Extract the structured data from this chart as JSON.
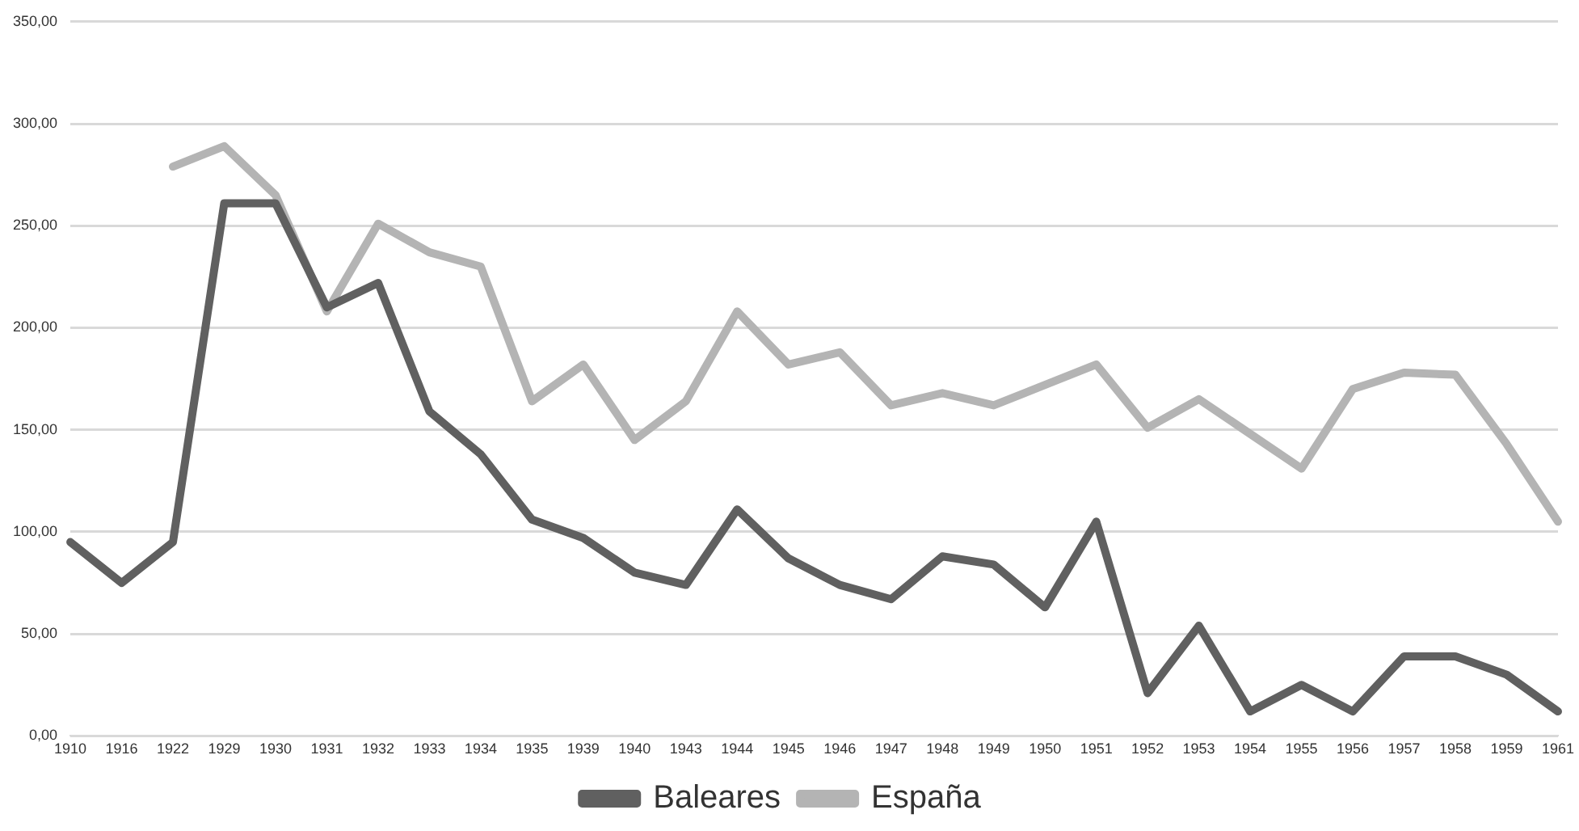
{
  "chart_data": {
    "type": "line",
    "categories": [
      "1910",
      "1916",
      "1922",
      "1929",
      "1930",
      "1931",
      "1932",
      "1933",
      "1934",
      "1935",
      "1939",
      "1940",
      "1943",
      "1944",
      "1945",
      "1946",
      "1947",
      "1948",
      "1949",
      "1950",
      "1951",
      "1952",
      "1953",
      "1954",
      "1955",
      "1956",
      "1957",
      "1958",
      "1959",
      "1961"
    ],
    "series": [
      {
        "name": "Baleares",
        "color": "#606060",
        "values": [
          95,
          75,
          95,
          261,
          261,
          210,
          222,
          159,
          138,
          106,
          97,
          80,
          74,
          111,
          87,
          74,
          67,
          88,
          84,
          63,
          105,
          21,
          54,
          12,
          25,
          12,
          39,
          39,
          30,
          12
        ]
      },
      {
        "name": "España",
        "color": "#b4b4b4",
        "values": [
          null,
          null,
          279,
          289,
          265,
          208,
          251,
          237,
          230,
          164,
          182,
          145,
          164,
          208,
          182,
          188,
          162,
          168,
          162,
          172,
          182,
          151,
          165,
          148,
          131,
          170,
          178,
          177,
          143,
          105
        ]
      }
    ],
    "ylim": [
      0,
      350
    ],
    "yticks": [
      {
        "value": 0,
        "label": "0,00"
      },
      {
        "value": 50,
        "label": "50,00"
      },
      {
        "value": 100,
        "label": "100,00"
      },
      {
        "value": 150,
        "label": "150,00"
      },
      {
        "value": 200,
        "label": "200,00"
      },
      {
        "value": 250,
        "label": "250,00"
      },
      {
        "value": 300,
        "label": "300,00"
      },
      {
        "value": 350,
        "label": "350,00"
      }
    ],
    "grid": "y",
    "legend": "bottom",
    "marker": "none",
    "line_style": "solid"
  }
}
